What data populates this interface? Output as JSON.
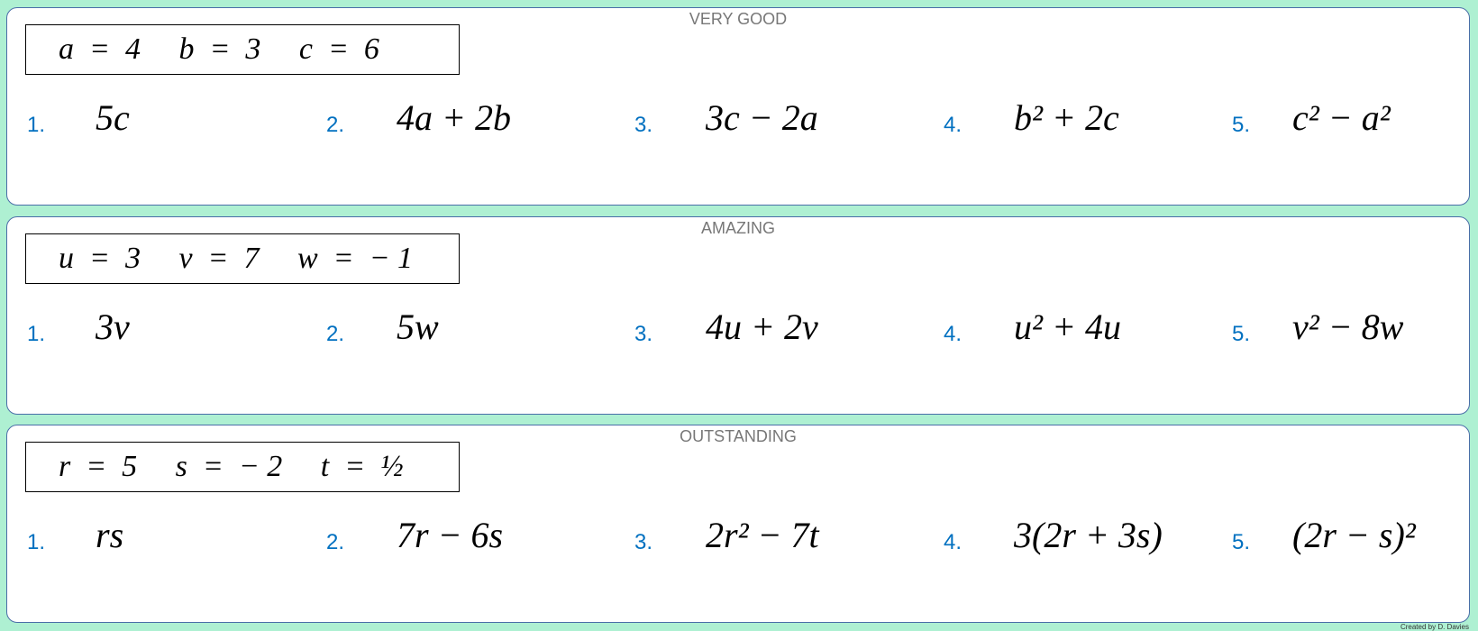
{
  "sections": [
    {
      "title": "VERY GOOD",
      "vars": "a  =  4     b  =  3     c  =  6",
      "items": [
        {
          "n": "1.",
          "e": "5c"
        },
        {
          "n": "2.",
          "e": "4a + 2b"
        },
        {
          "n": "3.",
          "e": "3c − 2a"
        },
        {
          "n": "4.",
          "e": "b² + 2c"
        },
        {
          "n": "5.",
          "e": "c² − a²"
        }
      ]
    },
    {
      "title": "AMAZING",
      "vars": "u  =  3     v  =  7     w  =  − 1",
      "items": [
        {
          "n": "1.",
          "e": "3v"
        },
        {
          "n": "2.",
          "e": "5w"
        },
        {
          "n": "3.",
          "e": "4u + 2v"
        },
        {
          "n": "4.",
          "e": "u² + 4u"
        },
        {
          "n": "5.",
          "e": "v² − 8w"
        }
      ]
    },
    {
      "title": "OUTSTANDING",
      "vars": "r  =  5     s  =  − 2     t  =  ½",
      "items": [
        {
          "n": "1.",
          "e": "rs"
        },
        {
          "n": "2.",
          "e": "7r − 6s"
        },
        {
          "n": "3.",
          "e": "2r² − 7t"
        },
        {
          "n": "4.",
          "e": "3(2r + 3s)"
        },
        {
          "n": "5.",
          "e": "(2r − s)²"
        }
      ]
    }
  ],
  "credit": "Created by D. Davies"
}
